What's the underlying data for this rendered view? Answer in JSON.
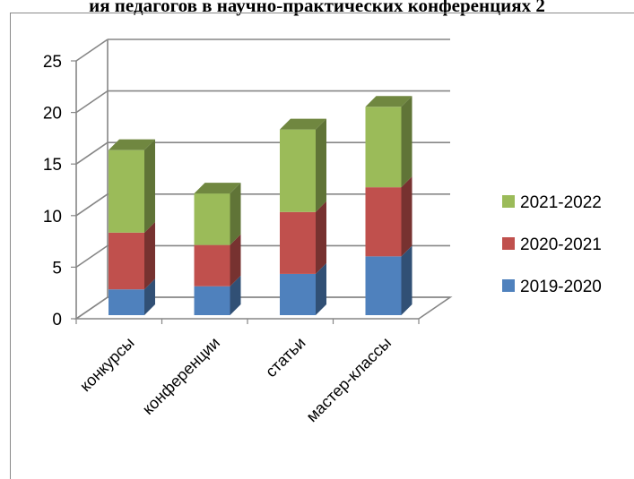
{
  "header": {
    "title": "ия педагогов  в научно-практических конференциях 2"
  },
  "chart_data": {
    "type": "bar",
    "stacked": true,
    "three_d": true,
    "categories": [
      "конкурсы",
      "конференции",
      "статьи",
      "мастер-классы"
    ],
    "series": [
      {
        "name": "2019-2020",
        "values": [
          2.5,
          2.8,
          4,
          5.7
        ],
        "color": "#4f81bd"
      },
      {
        "name": "2020-2021",
        "values": [
          5.5,
          4,
          6,
          6.7
        ],
        "color": "#c0504d"
      },
      {
        "name": "2021-2022",
        "values": [
          8,
          5,
          8,
          7.8
        ],
        "color": "#9bbb59"
      }
    ],
    "y_ticks": [
      "0",
      "5",
      "10",
      "15",
      "20",
      "25"
    ],
    "ylim": [
      0,
      25
    ],
    "grid": true,
    "legend_position": "right"
  }
}
